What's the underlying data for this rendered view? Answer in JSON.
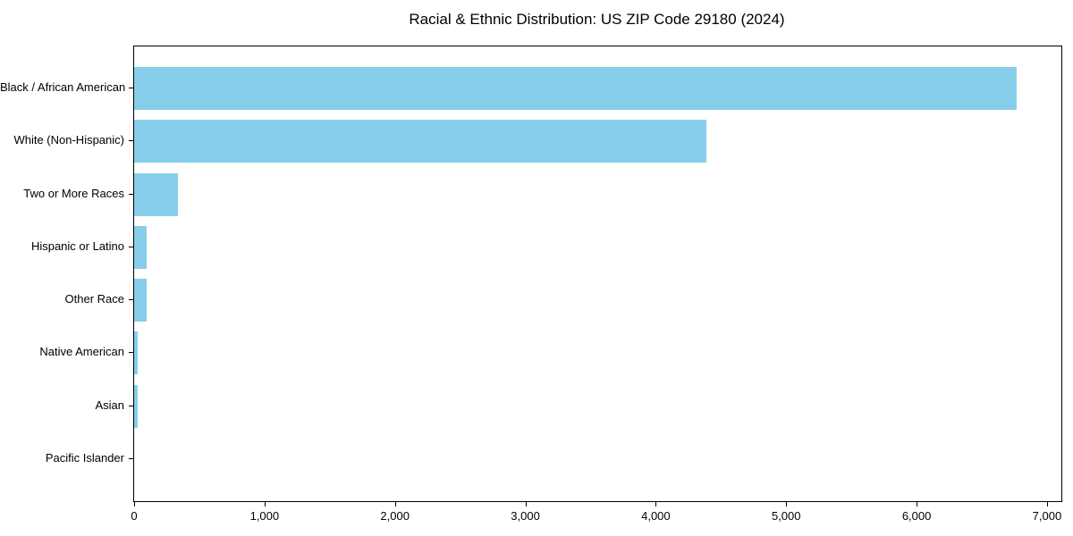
{
  "chart_data": {
    "type": "bar",
    "orientation": "horizontal",
    "title": "Racial & Ethnic Distribution: US ZIP Code 29180 (2024)",
    "categories": [
      "Black / African American",
      "White (Non-Hispanic)",
      "Two or More Races",
      "Hispanic or Latino",
      "Other Race",
      "Native American",
      "Asian",
      "Pacific Islander"
    ],
    "values": [
      6770,
      4385,
      336,
      95,
      97,
      24,
      30,
      0
    ],
    "xlabel": "",
    "ylabel": "",
    "xlim": [
      0,
      7110
    ],
    "xticks": [
      0,
      1000,
      2000,
      3000,
      4000,
      5000,
      6000,
      7000
    ],
    "xtick_labels": [
      "0",
      "1,000",
      "2,000",
      "3,000",
      "4,000",
      "5,000",
      "6,000",
      "7,000"
    ],
    "bar_color": "#87CEEB",
    "axis_color": "#000000",
    "text_color": "#000000",
    "background_color": "#ffffff",
    "grid": false,
    "legend": false
  }
}
